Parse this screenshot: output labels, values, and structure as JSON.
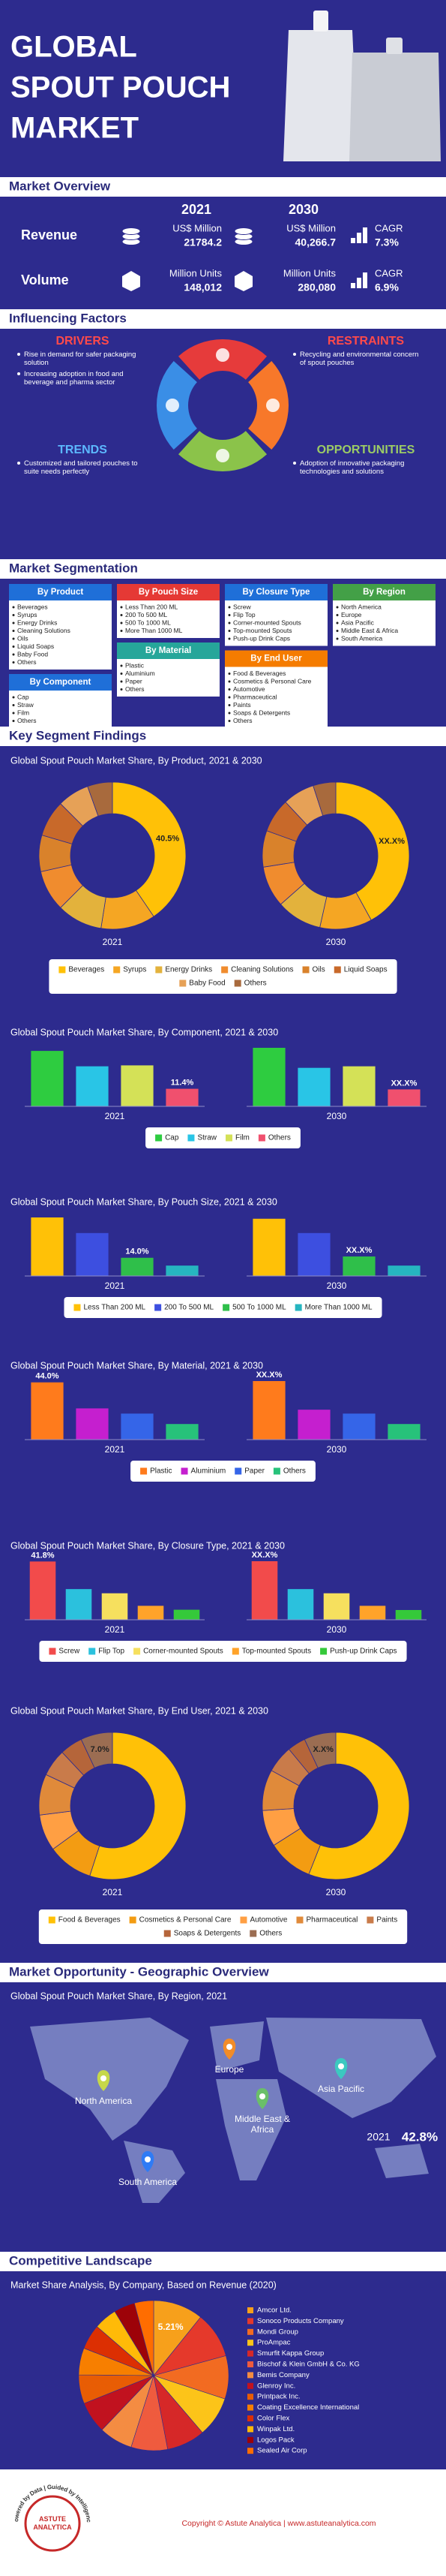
{
  "header": {
    "title": [
      "GLOBAL",
      "SPOUT POUCH",
      "MARKET"
    ]
  },
  "overview": {
    "heading": "Market Overview",
    "years": [
      "2021",
      "2030"
    ],
    "rows": [
      {
        "label": "Revenue",
        "unit_2021": "US$ Million",
        "value_2021": "21784.2",
        "unit_2030": "US$ Million",
        "value_2030": "40,266.7",
        "cagr_label": "CAGR",
        "cagr": "7.3%"
      },
      {
        "label": "Volume",
        "unit_2021": "Million Units",
        "value_2021": "148,012",
        "unit_2030": "Million Units",
        "value_2030": "280,080",
        "cagr_label": "CAGR",
        "cagr": "6.9%"
      }
    ]
  },
  "factors": {
    "heading": "Influencing Factors",
    "drivers": {
      "title": "DRIVERS",
      "color": "#ff4a4a",
      "items": [
        "Rise in demand for safer packaging solution",
        "Increasing adoption in food and beverage and pharma sector"
      ]
    },
    "restraints": {
      "title": "RESTRAINTS",
      "color": "#ff4a4a",
      "items": [
        "Recycling and environmental concern of spout pouches"
      ]
    },
    "trends": {
      "title": "TRENDS",
      "color": "#5cb8ff",
      "items": [
        "Customized and tailored pouches to suite needs perfectly"
      ]
    },
    "opportunities": {
      "title": "OPPORTUNITIES",
      "color": "#9ccc65",
      "items": [
        "Adoption of innovative packaging technologies and solutions"
      ]
    }
  },
  "segmentation": {
    "heading": "Market Segmentation",
    "groups": [
      {
        "title": "By Product",
        "color": "#1f6fd8",
        "items": [
          "Beverages",
          "Syrups",
          "Energy Drinks",
          "Cleaning Solutions",
          "Oils",
          "Liquid Soaps",
          "Baby Food",
          "Others"
        ]
      },
      {
        "title": "By Pouch Size",
        "color": "#e53935",
        "items": [
          "Less Than 200 ML",
          "200 To 500 ML",
          "500 To 1000 ML",
          "More Than 1000 ML"
        ]
      },
      {
        "title": "By Closure Type",
        "color": "#1f6fd8",
        "items": [
          "Screw",
          "Flip Top",
          "Corner-mounted Spouts",
          "Top-mounted Spouts",
          "Push-up Drink Caps"
        ]
      },
      {
        "title": "By Region",
        "color": "#43a047",
        "items": [
          "North America",
          "Europe",
          "Asia Pacific",
          "Middle East & Africa",
          "South America"
        ]
      },
      {
        "title": "By Component",
        "color": "#1f6fd8",
        "items": [
          "Cap",
          "Straw",
          "Film",
          "Others"
        ]
      },
      {
        "title": "By Material",
        "color": "#26a69a",
        "items": [
          "Plastic",
          "Aluminium",
          "Paper",
          "Others"
        ]
      },
      {
        "title": "By End User",
        "color": "#f57c00",
        "items": [
          "Food & Beverages",
          "Cosmetics & Personal Care",
          "Automotive",
          "Pharmaceutical",
          "Paints",
          "Soaps & Detergents",
          "Others"
        ]
      }
    ]
  },
  "findings": {
    "heading": "Key Segment Findings"
  },
  "chart_data": [
    {
      "type": "donut",
      "title": "Global Spout Pouch Market Share, By Product, 2021 & 2030",
      "categories": [
        "Beverages",
        "Syrups",
        "Energy Drinks",
        "Cleaning Solutions",
        "Oils",
        "Liquid Soaps",
        "Baby Food",
        "Others"
      ],
      "colors": [
        "#ffc107",
        "#f5a623",
        "#e3b23c",
        "#f08c2e",
        "#d9822b",
        "#c8692a",
        "#e6a157",
        "#a86a3d"
      ],
      "series": [
        {
          "name": "2021",
          "values": [
            40.5,
            12.0,
            10.0,
            9.0,
            8.0,
            8.0,
            7.0,
            5.5
          ],
          "value_labels": [
            "40.5%",
            null,
            null,
            null,
            null,
            null,
            null,
            null
          ]
        },
        {
          "name": "2030",
          "values": [
            42.0,
            11.5,
            10.0,
            9.0,
            8.0,
            7.5,
            7.0,
            5.0
          ],
          "masked_label": "XX.X%"
        }
      ]
    },
    {
      "type": "bar",
      "title": "Global Spout Pouch Market Share, By Component, 2021 & 2030",
      "categories": [
        "Cap",
        "Straw",
        "Film",
        "Others"
      ],
      "colors": [
        "#2ecc40",
        "#29c5e6",
        "#d4e157",
        "#f0506e"
      ],
      "series": [
        {
          "name": "2021",
          "values": [
            36.0,
            26.0,
            26.6,
            11.4
          ],
          "value_labels": [
            null,
            null,
            null,
            "11.4%"
          ]
        },
        {
          "name": "2030",
          "values": [
            38.0,
            25.0,
            26.0,
            11.0
          ],
          "masked_label": "XX.X%"
        }
      ]
    },
    {
      "type": "bar",
      "title": "Global Spout Pouch Market Share, By Pouch Size, 2021 & 2030",
      "categories": [
        "Less Than 200 ML",
        "200 To 500 ML",
        "500 To 1000 ML",
        "More Than 1000 ML"
      ],
      "colors": [
        "#ffc107",
        "#3d4fe0",
        "#2fbf4a",
        "#26b5c0"
      ],
      "series": [
        {
          "name": "2021",
          "values": [
            45.0,
            33.0,
            14.0,
            8.0
          ],
          "value_labels": [
            null,
            null,
            "14.0%",
            null
          ]
        },
        {
          "name": "2030",
          "values": [
            44.0,
            33.0,
            15.0,
            8.0
          ],
          "masked_label": "XX.X%"
        }
      ]
    },
    {
      "type": "bar",
      "title": "Global Spout Pouch Market Share, By Material, 2021 & 2030",
      "categories": [
        "Plastic",
        "Aluminium",
        "Paper",
        "Others"
      ],
      "colors": [
        "#ff7b1c",
        "#c51fcf",
        "#3565e8",
        "#27c27a"
      ],
      "series": [
        {
          "name": "2021",
          "values": [
            44.0,
            24.0,
            20.0,
            12.0
          ],
          "value_labels": [
            "44.0%",
            null,
            null,
            null
          ]
        },
        {
          "name": "2030",
          "values": [
            45.0,
            23.0,
            20.0,
            12.0
          ],
          "masked_label": "XX.X%"
        }
      ]
    },
    {
      "type": "bar",
      "title": "Global Spout Pouch Market Share, By Closure Type, 2021 & 2030",
      "categories": [
        "Screw",
        "Flip Top",
        "Corner-mounted Spouts",
        "Top-mounted Spouts",
        "Push-up Drink Caps"
      ],
      "colors": [
        "#f24b4b",
        "#2bc1dd",
        "#f6e05e",
        "#ffa329",
        "#35c93a"
      ],
      "series": [
        {
          "name": "2021",
          "values": [
            41.8,
            22.0,
            19.0,
            10.0,
            7.2
          ],
          "value_labels": [
            "41.8%",
            null,
            null,
            null,
            null
          ]
        },
        {
          "name": "2030",
          "values": [
            42.0,
            22.0,
            19.0,
            10.0,
            7.0
          ],
          "masked_label": "XX.X%"
        }
      ]
    },
    {
      "type": "donut",
      "title": "Global Spout Pouch Market Share, By End User, 2021 & 2030",
      "categories": [
        "Food & Beverages",
        "Cosmetics & Personal Care",
        "Automotive",
        "Pharmaceutical",
        "Paints",
        "Soaps & Detergents",
        "Others"
      ],
      "colors": [
        "#ffc107",
        "#f39c12",
        "#ff9f43",
        "#e08a3a",
        "#c97b4a",
        "#b5653a",
        "#9b6d52"
      ],
      "series": [
        {
          "name": "2021",
          "values": [
            55.0,
            10.0,
            8.0,
            9.0,
            6.0,
            5.0,
            7.0
          ],
          "value_labels": [
            null,
            null,
            null,
            null,
            null,
            null,
            "7.0%"
          ]
        },
        {
          "name": "2030",
          "values": [
            56.0,
            10.0,
            8.0,
            9.0,
            6.0,
            4.0,
            7.0
          ],
          "masked_label": "X.X%"
        }
      ]
    },
    {
      "type": "pie",
      "title": "Market Share Analysis, By Company, Based on Revenue (2020)",
      "categories": [
        "Amcor Ltd.",
        "Sonoco Products Company",
        "Mondi Group",
        "ProAmpac",
        "Smurfit Kappa Group",
        "Bischof & Klein GmbH & Co. KG",
        "Bemis Company",
        "Glenroy Inc.",
        "Printpack Inc.",
        "Coating Excellence International",
        "Color Flex",
        "Winpak Ltd.",
        "Logos Pack",
        "Sealed Air Corp"
      ],
      "colors": [
        "#f7a01b",
        "#e5392b",
        "#f26b21",
        "#fcc419",
        "#d62828",
        "#ef5b3e",
        "#f48c42",
        "#c1121f",
        "#e85d04",
        "#f77f00",
        "#dc2f02",
        "#ffba08",
        "#9d0208",
        "#ff6d00"
      ],
      "values": [
        5.21,
        4.8,
        4.5,
        4.2,
        4.0,
        3.8,
        3.5,
        3.3,
        3.0,
        2.8,
        2.6,
        2.4,
        2.2,
        2.0
      ],
      "value_labels": [
        "5.21%",
        null,
        null,
        null,
        null,
        null,
        null,
        null,
        null,
        null,
        null,
        null,
        null,
        null
      ]
    }
  ],
  "geography": {
    "heading": "Market Opportunity - Geographic Overview",
    "subtitle": "Global Spout Pouch Market Share, By Region, 2021",
    "regions": [
      {
        "name": "North America",
        "color": "#c6d84a"
      },
      {
        "name": "Europe",
        "color": "#f28c28"
      },
      {
        "name": "Asia Pacific",
        "color": "#3cc9c0"
      },
      {
        "name": "Middle East & Africa",
        "color": "#6abf69"
      },
      {
        "name": "South America",
        "color": "#2f7bf5"
      }
    ],
    "year": "2021",
    "share": "42.8%"
  },
  "competition": {
    "heading": "Competitive Landscape"
  },
  "footer": {
    "logo_name": "ASTUTE ANALYTICA",
    "tagline": "Powered by Data | Guided by Intelligence",
    "copyright": "Copyright © Astute Analytica | www.astuteanalytica.com"
  }
}
